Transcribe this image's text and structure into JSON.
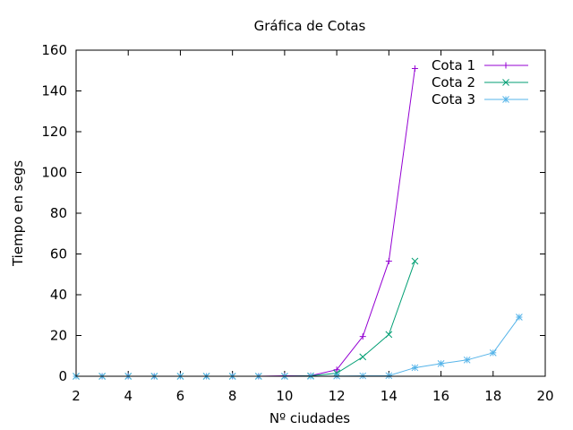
{
  "chart_data": {
    "type": "line",
    "title": "Gráfica de Cotas",
    "xlabel": "Nº ciudades",
    "ylabel": "Tiempo en segs",
    "xlim": [
      2,
      20
    ],
    "ylim": [
      0,
      160
    ],
    "xticks": [
      2,
      4,
      6,
      8,
      10,
      12,
      14,
      16,
      18,
      20
    ],
    "yticks": [
      0,
      20,
      40,
      60,
      80,
      100,
      120,
      140,
      160
    ],
    "grid": false,
    "legend_position": "top-right",
    "series": [
      {
        "name": "Cota 1",
        "color": "#9400d3",
        "marker": "plus",
        "x": [
          2,
          3,
          4,
          5,
          6,
          7,
          8,
          9,
          10,
          11,
          12,
          13,
          14,
          15
        ],
        "y": [
          0,
          0,
          0,
          0,
          0,
          0,
          0,
          0,
          0.2,
          0.3,
          3.2,
          19.5,
          56.5,
          151
        ]
      },
      {
        "name": "Cota 2",
        "color": "#009e73",
        "marker": "cross",
        "x": [
          2,
          3,
          4,
          5,
          6,
          7,
          8,
          9,
          10,
          11,
          12,
          13,
          14,
          15
        ],
        "y": [
          0,
          0,
          0,
          0,
          0,
          0,
          0,
          0,
          0,
          0.2,
          1.5,
          9.5,
          20.5,
          56.5
        ]
      },
      {
        "name": "Cota 3",
        "color": "#56b4e9",
        "marker": "star",
        "x": [
          2,
          3,
          4,
          5,
          6,
          7,
          8,
          9,
          10,
          11,
          12,
          13,
          14,
          15,
          16,
          17,
          18,
          19
        ],
        "y": [
          0,
          0,
          0,
          0,
          0,
          0,
          0,
          0,
          0,
          0,
          0.1,
          0.2,
          0.3,
          4.2,
          6.2,
          8,
          11.5,
          29
        ]
      }
    ]
  }
}
